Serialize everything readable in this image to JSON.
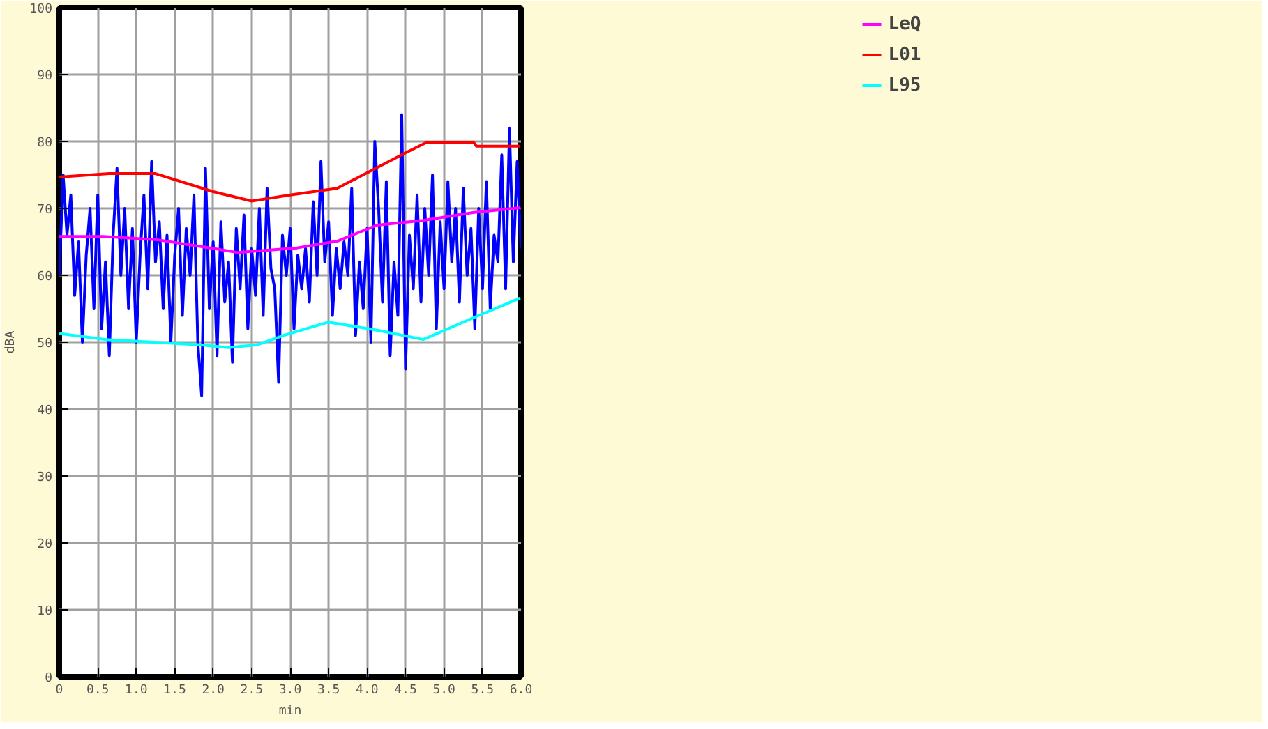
{
  "chart_data": {
    "type": "line",
    "xlabel": "min",
    "ylabel": "dBA",
    "x": [
      0,
      0.05,
      0.1,
      0.15,
      0.2,
      0.25,
      0.3,
      0.35,
      0.4,
      0.45,
      0.5,
      0.55,
      0.6,
      0.65,
      0.7,
      0.75,
      0.8,
      0.85,
      0.9,
      0.95,
      1.0,
      1.05,
      1.1,
      1.15,
      1.2,
      1.25,
      1.3,
      1.35,
      1.4,
      1.45,
      1.5,
      1.55,
      1.6,
      1.65,
      1.7,
      1.75,
      1.8,
      1.85,
      1.9,
      1.95,
      2.0,
      2.05,
      2.1,
      2.15,
      2.2,
      2.25,
      2.3,
      2.35,
      2.4,
      2.45,
      2.5,
      2.55,
      2.6,
      2.65,
      2.7,
      2.75,
      2.8,
      2.85,
      2.9,
      2.95,
      3.0,
      3.05,
      3.1,
      3.15,
      3.2,
      3.25,
      3.3,
      3.35,
      3.4,
      3.45,
      3.5,
      3.55,
      3.6,
      3.65,
      3.7,
      3.75,
      3.8,
      3.85,
      3.9,
      3.95,
      4.0,
      4.05,
      4.1,
      4.15,
      4.2,
      4.25,
      4.3,
      4.35,
      4.4,
      4.45,
      4.5,
      4.55,
      4.6,
      4.65,
      4.7,
      4.75,
      4.8,
      4.85,
      4.9,
      4.95,
      5.0,
      5.05,
      5.1,
      5.15,
      5.2,
      5.25,
      5.3,
      5.35,
      5.4,
      5.45,
      5.5,
      5.55,
      5.6,
      5.65,
      5.7,
      5.75,
      5.8,
      5.85,
      5.9,
      5.95,
      6.0
    ],
    "series": [
      {
        "color": "#0000ff",
        "values": [
          60,
          75,
          66,
          72,
          57,
          65,
          50,
          63,
          70,
          55,
          72,
          52,
          62,
          48,
          66,
          76,
          60,
          70,
          55,
          67,
          50,
          63,
          72,
          58,
          77,
          62,
          68,
          55,
          66,
          50,
          63,
          70,
          54,
          67,
          60,
          72,
          50,
          42,
          76,
          55,
          65,
          48,
          68,
          56,
          62,
          47,
          67,
          58,
          69,
          52,
          64,
          57,
          70,
          54,
          73,
          61,
          58,
          44,
          66,
          60,
          67,
          52,
          63,
          58,
          64,
          56,
          71,
          60,
          77,
          62,
          68,
          54,
          64,
          58,
          65,
          60,
          73,
          51,
          62,
          55,
          67,
          50,
          80,
          70,
          56,
          74,
          48,
          62,
          54,
          84,
          46,
          66,
          58,
          72,
          56,
          70,
          60,
          75,
          52,
          68,
          58,
          74,
          62,
          70,
          56,
          73,
          60,
          67,
          52,
          70,
          58,
          74,
          55,
          66,
          62,
          78,
          58,
          82,
          62,
          77,
          64
        ]
      },
      {
        "name": "LeQ",
        "color": "#ff00ff",
        "x": [
          0,
          0.57,
          1.28,
          2.06,
          2.32,
          3.09,
          3.61,
          4.13,
          4.73,
          5.39,
          5.99
        ],
        "values": [
          65.8,
          65.8,
          65.3,
          63.9,
          63.4,
          64.1,
          65.1,
          67.5,
          68.2,
          69.4,
          70.1
        ]
      },
      {
        "name": "L01",
        "color": "#ff0000",
        "x": [
          0,
          0.65,
          1.25,
          2.0,
          2.5,
          3.0,
          3.61,
          4.5,
          4.76,
          5.39,
          5.42,
          5.99
        ],
        "values": [
          74.7,
          75.2,
          75.2,
          72.5,
          71.1,
          72.0,
          73.0,
          78.3,
          79.8,
          79.8,
          79.3,
          79.3
        ]
      },
      {
        "name": "L95",
        "color": "#00ffff",
        "x": [
          0,
          0.61,
          1.83,
          2.2,
          2.57,
          2.94,
          3.5,
          4.13,
          4.73,
          5.39,
          5.99
        ],
        "values": [
          51.3,
          50.4,
          49.6,
          49.2,
          49.6,
          51.1,
          53.0,
          51.8,
          50.4,
          53.7,
          56.6
        ]
      }
    ],
    "xlim": [
      0,
      6
    ],
    "ylim": [
      0,
      100
    ],
    "xticks": [
      0,
      {
        "value": 0.5,
        "label": "0.5"
      },
      {
        "value": 1,
        "label": "1.0"
      },
      {
        "value": 1.5,
        "label": "1.5"
      },
      {
        "value": 2,
        "label": "2.0"
      },
      {
        "value": 2.5,
        "label": "2.5"
      },
      {
        "value": 3,
        "label": "3.0"
      },
      {
        "value": 3.5,
        "label": "3.5"
      },
      {
        "value": 4,
        "label": "4.0"
      },
      {
        "value": 4.5,
        "label": "4.5"
      },
      {
        "value": 5,
        "label": "5.0"
      },
      {
        "value": 5.5,
        "label": "5.5"
      },
      {
        "value": 6,
        "label": "6.0"
      }
    ],
    "yticks": [
      0,
      10,
      20,
      30,
      40,
      50,
      60,
      70,
      80,
      90,
      100
    ],
    "grid": true,
    "legend": "top right"
  }
}
